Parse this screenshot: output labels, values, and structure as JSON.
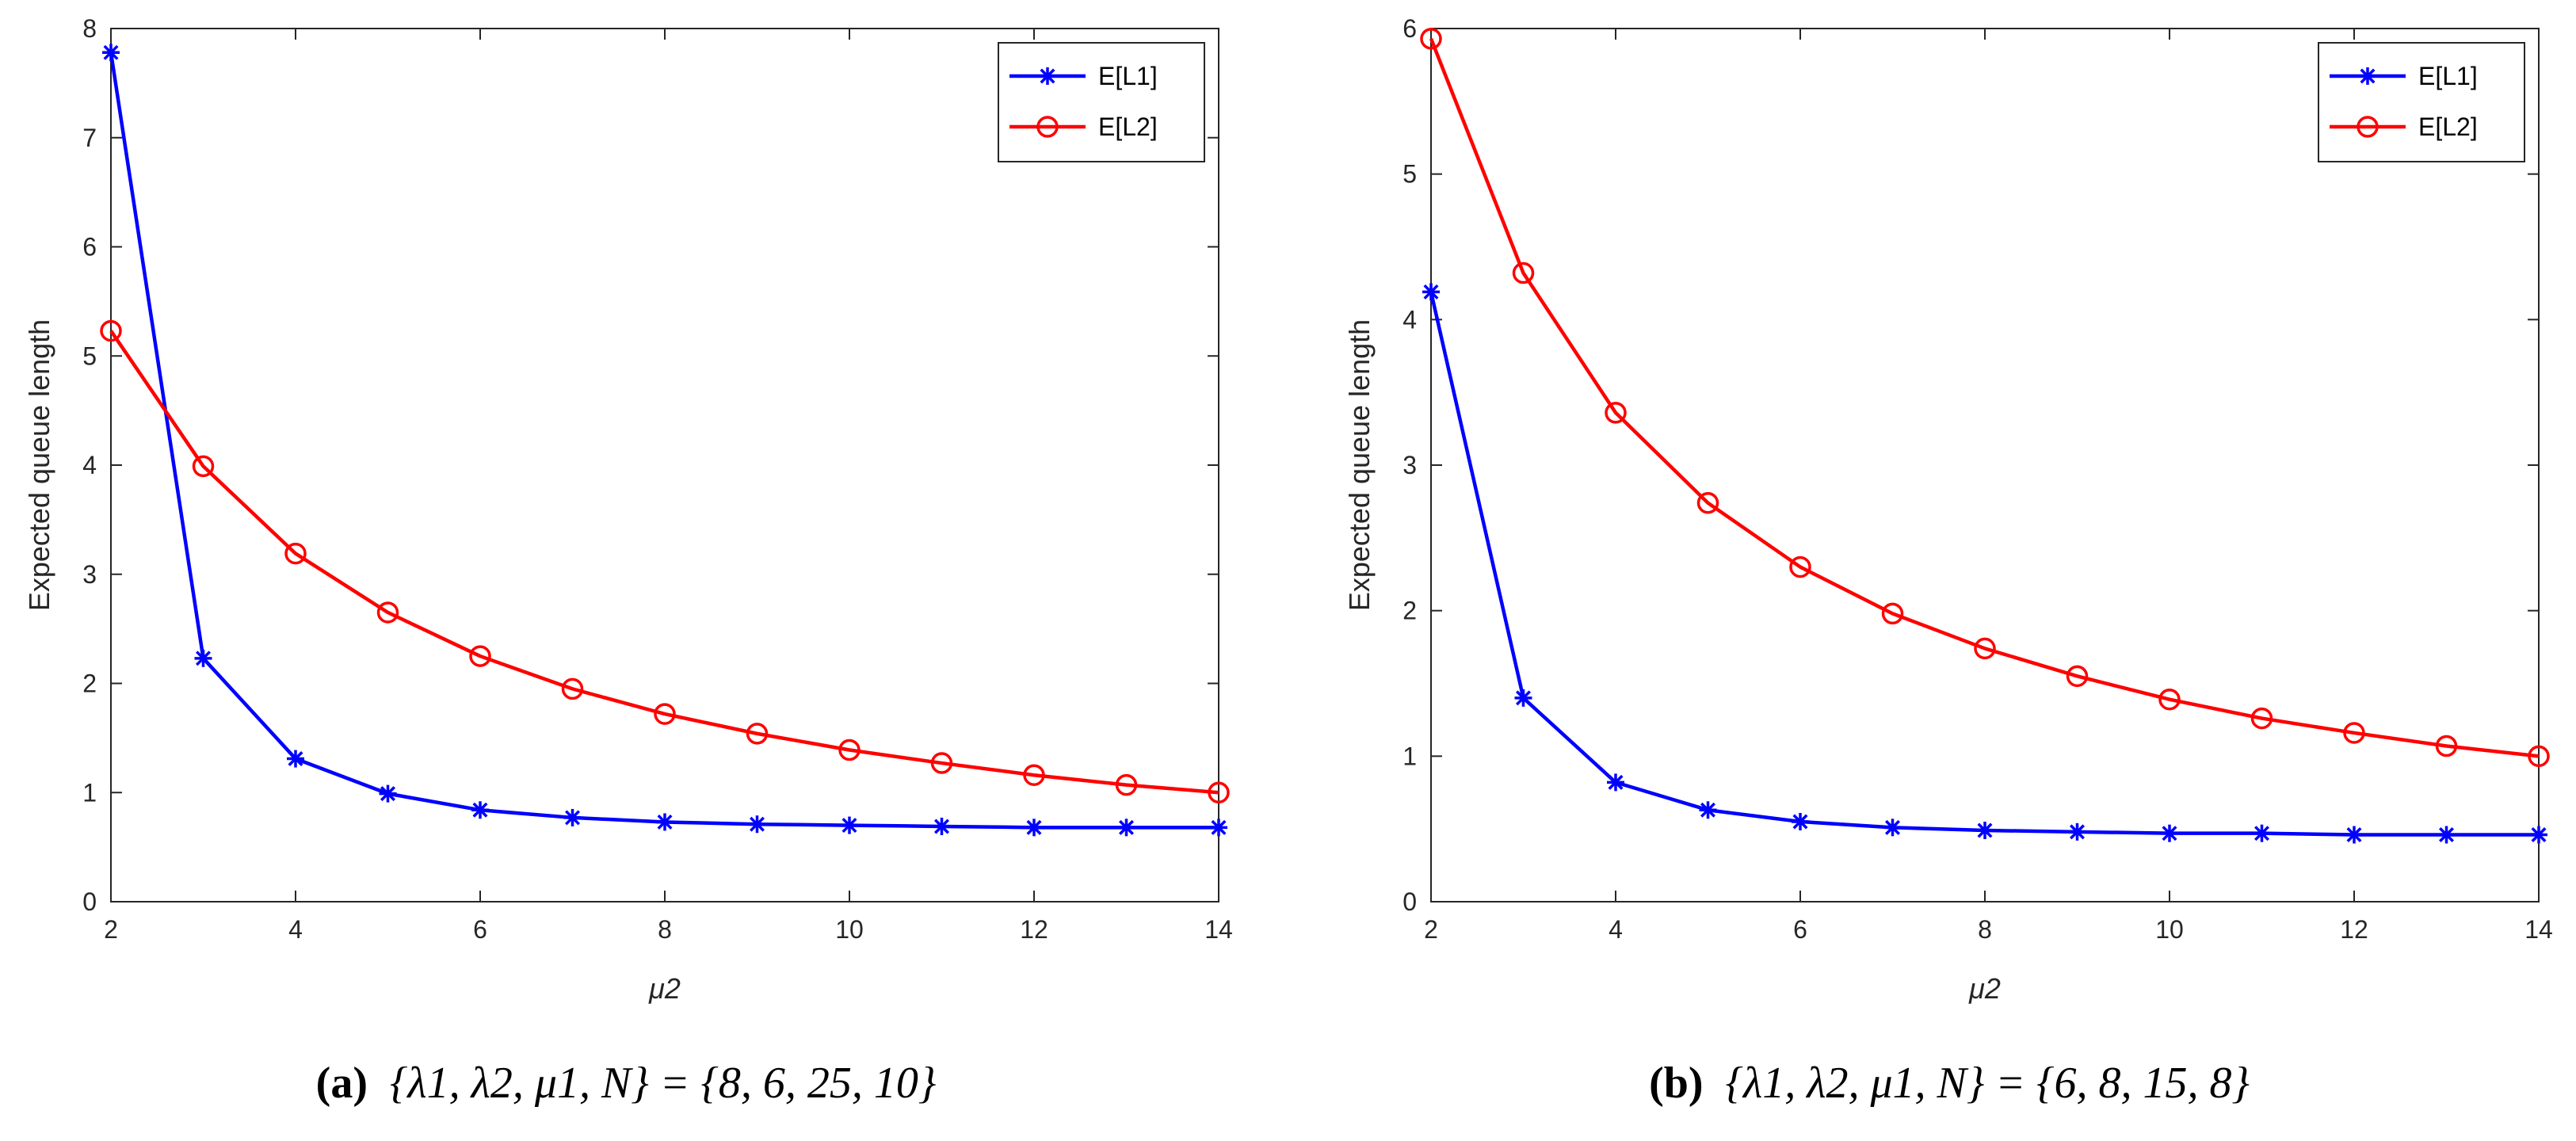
{
  "chart_data": [
    {
      "type": "line",
      "caption_letter": "(a)",
      "caption_text": "{λ1, λ2, μ1, N} = {8, 6, 25, 10}",
      "caption_tex": "\\{\\lambda_1,\\lambda_2,\\mu_1,N\\}=\\{8,6,25,10\\}",
      "xlabel": "μ2",
      "ylabel": "Expected queue length",
      "xlim": [
        2,
        14
      ],
      "ylim": [
        0,
        8
      ],
      "xticks": [
        2,
        4,
        6,
        8,
        10,
        12,
        14
      ],
      "yticks": [
        0,
        1,
        2,
        3,
        4,
        5,
        6,
        7,
        8
      ],
      "legend_position": "top-right",
      "grid": false,
      "x": [
        2,
        3,
        4,
        5,
        6,
        7,
        8,
        9,
        10,
        11,
        12,
        13,
        14
      ],
      "series": [
        {
          "name": "E[L1]",
          "color": "#0000ff",
          "marker": "asterisk",
          "values": [
            7.78,
            2.23,
            1.31,
            0.99,
            0.84,
            0.77,
            0.73,
            0.71,
            0.7,
            0.69,
            0.68,
            0.68,
            0.68
          ]
        },
        {
          "name": "E[L2]",
          "color": "#ff0000",
          "marker": "circle",
          "values": [
            5.23,
            3.99,
            3.19,
            2.65,
            2.25,
            1.95,
            1.72,
            1.54,
            1.39,
            1.27,
            1.16,
            1.07,
            1.0
          ]
        }
      ]
    },
    {
      "type": "line",
      "caption_letter": "(b)",
      "caption_text": "{λ1, λ2, μ1, N} = {6, 8, 15, 8}",
      "caption_tex": "\\{\\lambda_1,\\lambda_2,\\mu_1,N\\}=\\{6,8,15,8\\}",
      "xlabel": "μ2",
      "ylabel": "Expected queue length",
      "xlim": [
        2,
        14
      ],
      "ylim": [
        0,
        6
      ],
      "xticks": [
        2,
        4,
        6,
        8,
        10,
        12,
        14
      ],
      "yticks": [
        0,
        1,
        2,
        3,
        4,
        5,
        6
      ],
      "legend_position": "top-right",
      "grid": false,
      "x": [
        2,
        3,
        4,
        5,
        6,
        7,
        8,
        9,
        10,
        11,
        12,
        13,
        14
      ],
      "series": [
        {
          "name": "E[L1]",
          "color": "#0000ff",
          "marker": "asterisk",
          "values": [
            4.19,
            1.4,
            0.82,
            0.63,
            0.55,
            0.51,
            0.49,
            0.48,
            0.47,
            0.47,
            0.46,
            0.46,
            0.46
          ]
        },
        {
          "name": "E[L2]",
          "color": "#ff0000",
          "marker": "circle",
          "values": [
            5.93,
            4.32,
            3.36,
            2.74,
            2.3,
            1.98,
            1.74,
            1.55,
            1.39,
            1.26,
            1.16,
            1.07,
            1.0
          ]
        }
      ]
    }
  ]
}
